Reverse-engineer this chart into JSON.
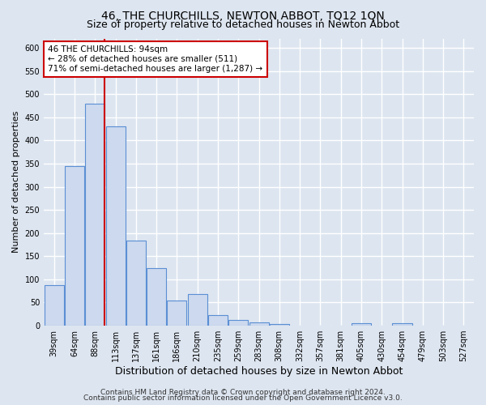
{
  "title": "46, THE CHURCHILLS, NEWTON ABBOT, TQ12 1QN",
  "subtitle": "Size of property relative to detached houses in Newton Abbot",
  "xlabel": "Distribution of detached houses by size in Newton Abbot",
  "ylabel": "Number of detached properties",
  "categories": [
    "39sqm",
    "64sqm",
    "88sqm",
    "113sqm",
    "137sqm",
    "161sqm",
    "186sqm",
    "210sqm",
    "235sqm",
    "259sqm",
    "283sqm",
    "308sqm",
    "332sqm",
    "357sqm",
    "381sqm",
    "405sqm",
    "430sqm",
    "454sqm",
    "479sqm",
    "503sqm",
    "527sqm"
  ],
  "values": [
    88,
    345,
    480,
    430,
    183,
    125,
    55,
    68,
    23,
    13,
    8,
    3,
    0,
    0,
    0,
    5,
    0,
    5,
    0,
    0,
    0
  ],
  "bar_color": "#ccd9ee",
  "bar_edge_color": "#5b8fd4",
  "red_line_index": 2,
  "red_line_color": "#cc0000",
  "ylim": [
    0,
    620
  ],
  "yticks": [
    0,
    50,
    100,
    150,
    200,
    250,
    300,
    350,
    400,
    450,
    500,
    550,
    600
  ],
  "annotation_text": "46 THE CHURCHILLS: 94sqm\n← 28% of detached houses are smaller (511)\n71% of semi-detached houses are larger (1,287) →",
  "annotation_box_color": "#ffffff",
  "annotation_box_edge_color": "#cc0000",
  "footer_line1": "Contains HM Land Registry data © Crown copyright and database right 2024.",
  "footer_line2": "Contains public sector information licensed under the Open Government Licence v3.0.",
  "bg_color": "#dde5f0",
  "plot_bg_color": "#dde5f0",
  "grid_color": "#ffffff",
  "title_fontsize": 10,
  "subtitle_fontsize": 9,
  "xlabel_fontsize": 9,
  "ylabel_fontsize": 8,
  "tick_fontsize": 7,
  "annotation_fontsize": 7.5,
  "footer_fontsize": 6.5
}
